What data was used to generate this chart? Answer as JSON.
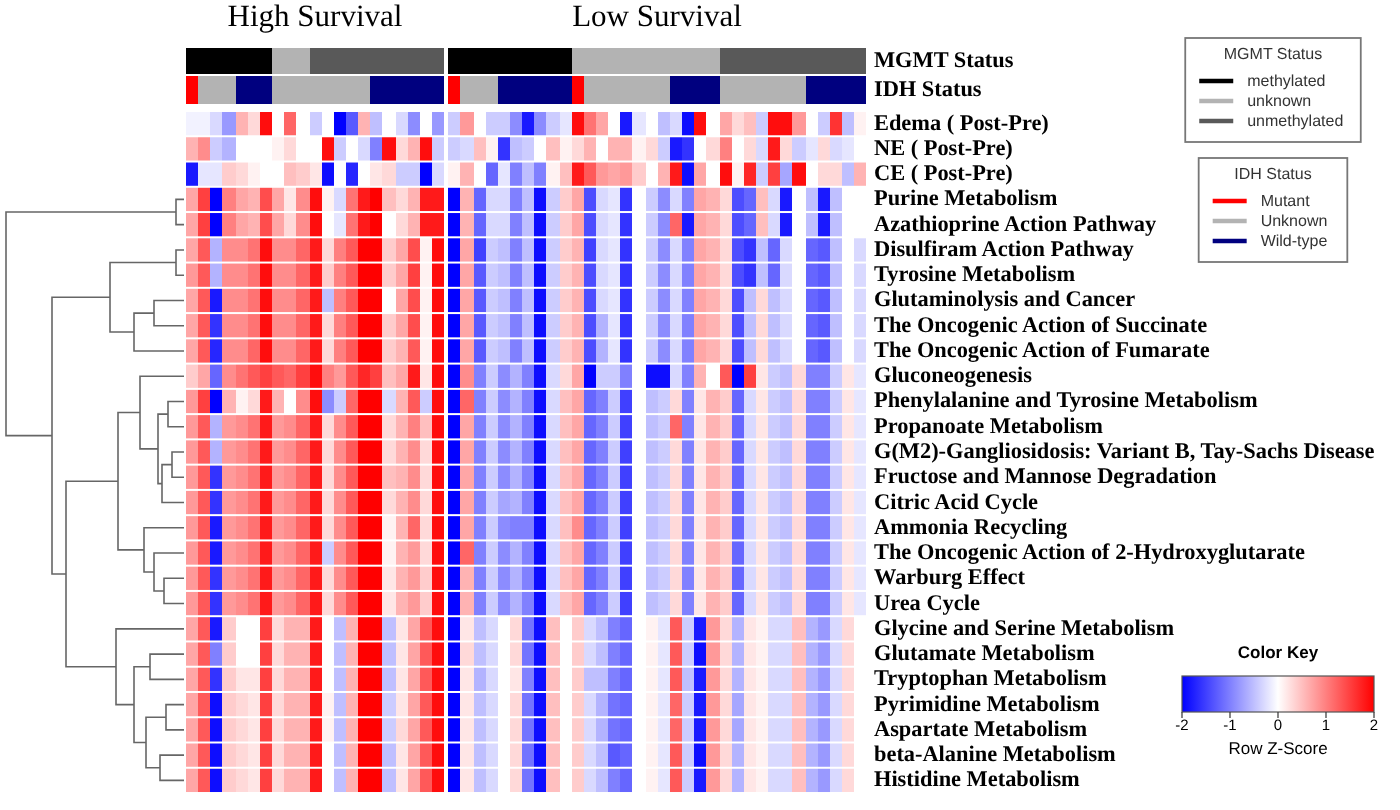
{
  "chart_data": [
    {
      "type": "other",
      "ylabel": "MGMT Status",
      "legend": "right",
      "legend_title": "MGMT Status",
      "annotations": [
        "High Survival",
        "Low Survival"
      ],
      "series": [
        {
          "name": "methylated",
          "color": "#000000"
        },
        {
          "name": "unknown",
          "color": "#b3b3b3"
        },
        {
          "name": "unmethylated",
          "color": "#595959"
        }
      ],
      "colors": [
        "#000000",
        "#000000",
        "#000000",
        "#000000",
        "#000000",
        "#000000",
        "#000000",
        "#b3b3b3",
        "#b3b3b3",
        "#b3b3b3",
        "#595959",
        "#595959",
        "#595959",
        "#595959",
        "#595959",
        "#595959",
        "#595959",
        "#595959",
        "#595959",
        "#595959",
        "#595959",
        null,
        "#000000",
        "#000000",
        "#000000",
        "#000000",
        "#000000",
        "#000000",
        "#000000",
        "#000000",
        "#000000",
        "#000000",
        "#b3b3b3",
        "#b3b3b3",
        "#b3b3b3",
        "#b3b3b3",
        "#b3b3b3",
        "#b3b3b3",
        "#b3b3b3",
        "#b3b3b3",
        "#b3b3b3",
        "#b3b3b3",
        "#b3b3b3",
        "#b3b3b3",
        "#595959",
        "#595959",
        "#595959",
        "#595959",
        "#595959",
        "#595959",
        "#595959",
        "#595959",
        "#595959",
        "#595959",
        "#595959",
        "#595959"
      ]
    },
    {
      "type": "other",
      "ylabel": "IDH Status",
      "legend": "right",
      "legend_title": "IDH Status",
      "series": [
        {
          "name": "Mutant",
          "color": "#ff0000"
        },
        {
          "name": "Unknown",
          "color": "#b3b3b3"
        },
        {
          "name": "Wild-type",
          "color": "#00007f"
        }
      ],
      "colors": [
        "#ff0000",
        "#b3b3b3",
        "#b3b3b3",
        "#b3b3b3",
        "#00007f",
        "#00007f",
        "#00007f",
        "#b3b3b3",
        "#b3b3b3",
        "#b3b3b3",
        "#b3b3b3",
        "#b3b3b3",
        "#b3b3b3",
        "#b3b3b3",
        "#b3b3b3",
        "#00007f",
        "#00007f",
        "#00007f",
        "#00007f",
        "#00007f",
        "#00007f",
        null,
        "#ff0000",
        "#b3b3b3",
        "#b3b3b3",
        "#b3b3b3",
        "#00007f",
        "#00007f",
        "#00007f",
        "#00007f",
        "#00007f",
        "#00007f",
        "#ff0000",
        "#b3b3b3",
        "#b3b3b3",
        "#b3b3b3",
        "#b3b3b3",
        "#b3b3b3",
        "#b3b3b3",
        "#b3b3b3",
        "#00007f",
        "#00007f",
        "#00007f",
        "#00007f",
        "#b3b3b3",
        "#b3b3b3",
        "#b3b3b3",
        "#b3b3b3",
        "#b3b3b3",
        "#b3b3b3",
        "#b3b3b3",
        "#00007f",
        "#00007f",
        "#00007f",
        "#00007f",
        "#00007f"
      ]
    },
    {
      "type": "heatmap",
      "categories": [
        null,
        null,
        null,
        null,
        null,
        null,
        null,
        null,
        null,
        null,
        null,
        null,
        null,
        null,
        null,
        null,
        null,
        null,
        null,
        null,
        null,
        null,
        null,
        null,
        null,
        null,
        null,
        null,
        null,
        null,
        null,
        null,
        null,
        null,
        null,
        null,
        null,
        null,
        null,
        null,
        null,
        null,
        null,
        null,
        null,
        null,
        null,
        null,
        null,
        null,
        null,
        null,
        null,
        null,
        null,
        null
      ],
      "y_categories": [
        "Edema ( Post-Pre)",
        "NE ( Post-Pre)",
        "CE ( Post-Pre)",
        "Purine Metabolism",
        "Azathioprine Action Pathway",
        "Disulfiram Action Pathway",
        "Tyrosine Metabolism",
        "Glutaminolysis and Cancer",
        "The Oncogenic Action of Succinate",
        "The Oncogenic Action of Fumarate",
        "Gluconeogenesis",
        "Phenylalanine and Tyrosine Metabolism",
        "Propanoate Metabolism",
        "G(M2)-Gangliosidosis: Variant B, Tay-Sachs Disease",
        "Fructose and Mannose Degradation",
        "Citric Acid Cycle",
        "Ammonia Recycling",
        "The Oncogenic Action of 2-Hydroxyglutarate",
        "Warburg Effect",
        "Urea Cycle",
        "Glycine and Serine Metabolism",
        "Glutamate Metabolism",
        "Tryptophan Metabolism",
        "Pyrimidine Metabolism",
        "Aspartate Metabolism",
        "beta-Alanine Metabolism",
        "Histidine Metabolism"
      ],
      "clim": [
        -2,
        2
      ],
      "cticks": [
        -2,
        -1,
        0,
        1,
        2
      ],
      "clabel": "Row Z-Score",
      "annotations": [
        "Color Key"
      ],
      "cells": [
        [
          -0.1,
          -0.1,
          -0.3,
          -0.8,
          0.6,
          0.3,
          1.9,
          0,
          1.2,
          0,
          -0.4,
          0,
          -2,
          -1.3,
          0.6,
          -0.5,
          0,
          -0.3,
          -0.9,
          0,
          -0.8,
          null,
          -0.4,
          0.8,
          0,
          -0.4,
          -0.4,
          -0.9,
          -1.8,
          -0.9,
          -0.4,
          -0.2,
          1.9,
          1.1,
          0.7,
          0,
          -1.8,
          -0.2,
          0,
          -0.5,
          -0.3,
          -1.9,
          1.9,
          0,
          0.7,
          0.3,
          0.5,
          -0.4,
          1.9,
          1.9,
          0.8,
          0,
          -0.4,
          1.6,
          -0.5,
          0.1
        ],
        [
          0.6,
          0.9,
          -0.4,
          -0.6,
          0,
          0,
          0,
          0.1,
          0.3,
          0,
          0,
          1.9,
          -0.4,
          0,
          -0.3,
          -1.0,
          1.9,
          0.3,
          0.6,
          1.9,
          -0.4,
          null,
          -0.4,
          -0.3,
          0.5,
          0.1,
          -1.6,
          -0.5,
          -0.4,
          0,
          0.5,
          0.1,
          0.3,
          0.6,
          0,
          0.6,
          0.6,
          0.1,
          0.3,
          -0.4,
          -1.8,
          -1.6,
          0,
          0.3,
          1.0,
          0,
          0.3,
          -0.3,
          1.8,
          0.3,
          -0.4,
          -0.2,
          0.3,
          -0.3,
          -0.2,
          0
        ],
        [
          -1.8,
          -0.2,
          -0.2,
          0.4,
          0.3,
          0.1,
          0,
          0,
          0.5,
          0.4,
          0.2,
          -1.9,
          0,
          -1.7,
          0,
          0.2,
          0.3,
          -0.4,
          -0.4,
          -2,
          -0.3,
          null,
          0.1,
          0.6,
          0,
          -1.2,
          -0.2,
          -1.0,
          -0.5,
          -1.0,
          0.1,
          0.5,
          1.8,
          1.3,
          0.8,
          0.7,
          0.8,
          0.4,
          0,
          0.6,
          1.8,
          -1.9,
          0.7,
          0,
          1.9,
          0.1,
          1.7,
          -0.4,
          1.5,
          -0.7,
          1.9,
          0,
          0.3,
          0.3,
          -0.5,
          0.6
        ],
        [
          0.7,
          1.5,
          -2,
          1.0,
          0.7,
          0.6,
          1.4,
          0.7,
          0.2,
          0.9,
          1.9,
          0.1,
          -0.3,
          1.1,
          1.8,
          2,
          0.5,
          0.3,
          0.6,
          1.8,
          1.8,
          null,
          -2,
          0.6,
          -1.2,
          -0.3,
          -0.3,
          -1.0,
          -0.5,
          -1.9,
          -0.4,
          0.4,
          0.7,
          -1.4,
          -0.3,
          -0.2,
          -1.6,
          0,
          -0.4,
          -0.9,
          -0.3,
          -1.0,
          0.7,
          0.6,
          0.3,
          -1.4,
          -1.2,
          0.5,
          -0.3,
          -1.8,
          0,
          -0.5,
          -1.8,
          -0.5,
          0,
          0
        ],
        [
          0.7,
          1.5,
          -2,
          1.0,
          0.7,
          0.6,
          1.4,
          0.7,
          0.3,
          0.9,
          1.9,
          0,
          -0.2,
          1.1,
          1.8,
          2,
          0,
          0.3,
          0.6,
          1.8,
          1.8,
          null,
          -2,
          0.6,
          -1.2,
          -0.3,
          -0.3,
          -1.0,
          -0.5,
          -1.9,
          -0.4,
          0.4,
          0.7,
          -1.4,
          -0.3,
          -0.2,
          -1.6,
          0,
          -0.4,
          -0.9,
          1.2,
          -1.8,
          0.7,
          0.6,
          0.3,
          -1.4,
          -1.2,
          0.5,
          -0.3,
          -1.8,
          0,
          -0.5,
          -1.8,
          -0.5,
          0,
          0
        ],
        [
          0.7,
          1.3,
          -0.6,
          0.9,
          0.9,
          1.1,
          1.9,
          0.9,
          0.9,
          1.2,
          1.8,
          0.3,
          1.0,
          1.3,
          2,
          2,
          0.4,
          0.7,
          1.4,
          0.1,
          1.9,
          null,
          -2,
          0.7,
          -1.5,
          -0.4,
          -0.5,
          -1.0,
          -0.5,
          -1.9,
          -0.4,
          0.4,
          0.6,
          -1.5,
          -0.3,
          -0.2,
          -1.6,
          0,
          -0.4,
          -0.9,
          -0.3,
          -1.0,
          0.7,
          0.6,
          0.3,
          -1.4,
          -1.6,
          -0.5,
          -1.2,
          -0.3,
          0,
          -1.2,
          -1.3,
          -0.5,
          0,
          -0.3
        ],
        [
          0.8,
          1.3,
          -0.6,
          0.9,
          0.9,
          1.1,
          1.9,
          0.9,
          0.9,
          1.2,
          1.8,
          0.4,
          1.0,
          1.3,
          2,
          2,
          0.4,
          0.7,
          1.5,
          0.1,
          1.9,
          null,
          -2,
          0.7,
          -1.3,
          -0.4,
          -0.5,
          -1.0,
          -0.5,
          -1.9,
          -0.4,
          0.4,
          0.6,
          -1.4,
          -0.3,
          -0.2,
          -1.6,
          0,
          -0.4,
          -0.9,
          -0.3,
          -1.0,
          0.7,
          0.6,
          0.3,
          -1.4,
          -1.6,
          -0.5,
          -1.2,
          -0.3,
          0,
          -1.2,
          -1.3,
          -0.5,
          0,
          -0.3
        ],
        [
          0.7,
          1.3,
          -1.8,
          0.9,
          0.9,
          1.1,
          1.9,
          0.9,
          0.9,
          1.2,
          1.8,
          -0.5,
          1.0,
          1.3,
          2,
          2,
          0,
          0.7,
          1.4,
          0.1,
          1.9,
          null,
          -2,
          0.7,
          -1.3,
          -0.4,
          -0.5,
          -1.0,
          -0.5,
          -1.9,
          -0.4,
          0.4,
          0.6,
          -1.4,
          -0.3,
          -0.2,
          -1.6,
          0,
          -0.4,
          -0.9,
          -0.3,
          -1.0,
          0.7,
          0.6,
          0.3,
          -1.4,
          -0.5,
          0.3,
          -0.5,
          -0.3,
          0,
          -1.2,
          -1.3,
          -0.5,
          0,
          -0.3
        ],
        [
          0.7,
          1.3,
          -1.6,
          0.9,
          0.9,
          1.1,
          1.9,
          0.9,
          0.9,
          1.2,
          1.8,
          0.3,
          1.0,
          1.3,
          2,
          2,
          0.4,
          0.7,
          1.4,
          0.1,
          1.9,
          null,
          -2,
          0.7,
          -1.3,
          -0.4,
          -0.5,
          -1.0,
          -0.5,
          -1.9,
          -0.4,
          0.4,
          0.6,
          -1.4,
          -0.6,
          -0.2,
          -1.6,
          0,
          -0.4,
          -0.9,
          -0.3,
          -1.0,
          0.7,
          0.6,
          0.3,
          -1.4,
          -0.5,
          0.3,
          -0.5,
          -0.3,
          0,
          -1.2,
          -1.3,
          -0.5,
          0,
          -0.3
        ],
        [
          0.7,
          1.3,
          -1.7,
          0.9,
          0.9,
          1.2,
          1.9,
          0.9,
          0.9,
          1.2,
          1.8,
          0.3,
          1.0,
          1.3,
          2,
          2,
          0.4,
          0.6,
          1.3,
          0.1,
          1.9,
          null,
          -2,
          0.7,
          -1.3,
          -0.4,
          -0.5,
          -1.0,
          -0.5,
          -1.9,
          -0.4,
          0.4,
          0.6,
          -1.4,
          -0.6,
          -0.2,
          -1.6,
          0,
          -0.4,
          -0.9,
          -0.3,
          -1.0,
          0.7,
          0.6,
          0.3,
          -1.4,
          -0.5,
          0.3,
          -0.5,
          -0.3,
          0,
          -1.2,
          -1.3,
          -0.5,
          0,
          -0.3
        ],
        [
          0.4,
          0.7,
          -1.2,
          0.9,
          1.1,
          1.3,
          1.5,
          1.3,
          1.2,
          1.5,
          1.9,
          1.0,
          0.8,
          1.3,
          1.7,
          1.5,
          0.5,
          0.7,
          1.8,
          0.2,
          1.9,
          null,
          -2,
          0.9,
          -1.0,
          -0.4,
          -0.9,
          -0.6,
          -1.0,
          -1.9,
          -0.3,
          0.3,
          0.7,
          -2,
          -0.4,
          -0.4,
          -1.0,
          0,
          -1.9,
          -1.9,
          -0.3,
          -1.0,
          0.6,
          0,
          1.3,
          -2,
          1.5,
          0.2,
          -0.4,
          -0.5,
          0.3,
          -1.0,
          -1.0,
          -0.4,
          0.2,
          -0.2
        ],
        [
          0.8,
          1.5,
          -2,
          0.6,
          0.1,
          0.3,
          1.8,
          0.6,
          0,
          0.9,
          1.9,
          -0.9,
          -0.4,
          1.2,
          2,
          2,
          -0.3,
          0.6,
          1.3,
          -0.4,
          1.9,
          null,
          -2,
          1.2,
          -1.0,
          -0.4,
          -0.9,
          -0.6,
          -1.0,
          -1.9,
          -0.3,
          0.5,
          0.7,
          -1.2,
          -1.0,
          -0.4,
          -1.5,
          0,
          -0.5,
          -0.4,
          0.3,
          -1.0,
          0.2,
          0.6,
          0.4,
          -1.2,
          -0.3,
          0.2,
          -0.4,
          -0.5,
          0.3,
          -1.0,
          -1.0,
          -0.4,
          0.2,
          -0.2
        ],
        [
          0.8,
          1.3,
          -0.6,
          0.8,
          0.9,
          1.1,
          1.8,
          0.8,
          0.9,
          1.2,
          1.8,
          0.3,
          0.9,
          1.3,
          2,
          2,
          0.3,
          0.6,
          1.0,
          0.5,
          1.9,
          null,
          -2,
          0.7,
          -1.0,
          -0.4,
          -0.9,
          -0.6,
          -1.0,
          -1.9,
          -0.3,
          0.5,
          0.7,
          -1.2,
          -1.0,
          -0.4,
          -1.5,
          0,
          -0.5,
          -0.4,
          1.2,
          -1.0,
          0.2,
          0.6,
          0.4,
          -1.2,
          -0.3,
          0.2,
          -0.4,
          -0.5,
          0.3,
          -1.0,
          -1.0,
          -0.4,
          0.2,
          -0.2
        ],
        [
          0.8,
          1.3,
          -0.6,
          0.8,
          0.9,
          1.1,
          1.8,
          0.8,
          0.9,
          1.2,
          1.8,
          0.3,
          0.9,
          1.3,
          2,
          2,
          0.3,
          0.6,
          0.9,
          0.3,
          1.9,
          null,
          -2,
          0.7,
          -1.0,
          -0.4,
          -0.9,
          -0.6,
          -1.0,
          -1.9,
          -0.3,
          0.5,
          0.7,
          -1.2,
          -1.0,
          -0.4,
          -1.5,
          0,
          -0.5,
          -0.4,
          0.3,
          -1.0,
          0.2,
          0.6,
          0.4,
          -1.2,
          -0.3,
          0.2,
          -0.4,
          -0.5,
          0.3,
          -1.0,
          -1.0,
          -0.4,
          0.2,
          -0.2
        ],
        [
          0.8,
          1.3,
          -1.6,
          0.8,
          0.9,
          1.1,
          1.8,
          0.8,
          0.9,
          1.2,
          1.8,
          0.3,
          0.9,
          1.3,
          2,
          2,
          0.5,
          0.6,
          0.9,
          0.3,
          1.9,
          null,
          -2,
          0.7,
          -1.0,
          -0.4,
          -0.9,
          -0.6,
          -1.0,
          -1.9,
          -0.3,
          0.5,
          0.7,
          -1.2,
          -1.0,
          -0.4,
          -1.5,
          0,
          -0.5,
          -0.4,
          0.3,
          -1.0,
          0.2,
          0.6,
          0.4,
          -1.2,
          -0.3,
          0.2,
          -0.4,
          -0.5,
          0.3,
          -1.0,
          -1.0,
          -0.4,
          0.2,
          -0.2
        ],
        [
          0.8,
          1.3,
          -1.6,
          0.8,
          0.9,
          1.1,
          1.8,
          0.8,
          0.9,
          1.2,
          1.8,
          0.3,
          0.9,
          1.3,
          2,
          2,
          0.3,
          0.6,
          0.9,
          0.3,
          1.9,
          null,
          -2,
          0.7,
          -1.0,
          -0.4,
          -0.7,
          -0.6,
          -1.0,
          -1.9,
          -0.3,
          0.5,
          0.7,
          -1.2,
          -1.0,
          -0.4,
          -1.5,
          0,
          -0.5,
          -0.4,
          0.3,
          -1.0,
          0.2,
          0.6,
          0.4,
          -1.2,
          -0.3,
          0.2,
          -0.4,
          -0.5,
          0.3,
          -1.0,
          -1.0,
          -0.4,
          0.2,
          -0.2
        ],
        [
          0.8,
          1.3,
          -1.8,
          0.8,
          0.9,
          1.1,
          1.8,
          0.8,
          0.9,
          1.2,
          1.8,
          0.3,
          0.9,
          1.3,
          2,
          2,
          0.1,
          0.6,
          1.2,
          0.3,
          1.9,
          null,
          -2,
          0.7,
          -1.0,
          -0.4,
          -0.9,
          -1.0,
          -1.0,
          -1.9,
          -0.3,
          0.5,
          0.9,
          -1.2,
          -1.0,
          -0.4,
          -1.5,
          0,
          -0.5,
          -0.4,
          0.3,
          -1.0,
          0.2,
          0.6,
          0.4,
          -1.2,
          -0.3,
          0.2,
          -0.4,
          -0.5,
          0.3,
          -1.0,
          -1.0,
          -0.4,
          0.2,
          -0.2
        ],
        [
          0.8,
          1.3,
          -1.8,
          0.8,
          0.9,
          1.1,
          1.8,
          0.8,
          0.9,
          1.2,
          1.8,
          -0.4,
          0.9,
          1.3,
          2,
          2,
          0.1,
          0.6,
          0.8,
          0.3,
          1.9,
          null,
          -2,
          1.2,
          -1.0,
          -0.4,
          -0.9,
          -0.6,
          -1.0,
          -1.9,
          -0.3,
          0.5,
          0.7,
          -1.2,
          -1.0,
          -0.4,
          -1.5,
          0,
          -0.5,
          -0.4,
          0.3,
          -1.0,
          0.2,
          0.6,
          0.4,
          -1.2,
          -0.3,
          0.2,
          -0.4,
          -0.5,
          0.3,
          -1.0,
          -1.0,
          -0.4,
          0.2,
          -0.2
        ],
        [
          0.8,
          1.3,
          -1.6,
          0.8,
          0.9,
          1.1,
          1.8,
          0.8,
          0.9,
          1.2,
          1.8,
          0.3,
          0.9,
          1.3,
          2,
          2,
          0.2,
          0.6,
          0.8,
          0.4,
          1.9,
          null,
          -2,
          0.6,
          -1.0,
          -0.4,
          -0.9,
          -0.6,
          -1.0,
          -1.9,
          -0.3,
          0.5,
          0.7,
          -1.2,
          -1.0,
          -0.4,
          -1.5,
          0,
          -0.5,
          -0.4,
          0.3,
          -1.0,
          0.2,
          0.6,
          0.4,
          -1.2,
          -0.3,
          0.2,
          -0.4,
          -0.5,
          0.3,
          -1.0,
          -1.0,
          -0.4,
          0.2,
          -0.2
        ],
        [
          0.8,
          1.3,
          -1.6,
          0.8,
          0.9,
          1.1,
          1.8,
          0.8,
          0.9,
          1.2,
          1.8,
          0.3,
          0.9,
          1.3,
          2,
          2,
          0.2,
          0.6,
          0.8,
          0.4,
          1.9,
          null,
          -2,
          0.6,
          -1.0,
          -0.4,
          -0.9,
          -0.6,
          -1.0,
          -1.9,
          -0.3,
          0.5,
          0.7,
          -1.2,
          -1.0,
          -0.4,
          -1.5,
          0,
          -0.5,
          -0.4,
          0.3,
          -1.0,
          0.2,
          0.6,
          0.4,
          -1.2,
          -0.3,
          0.2,
          -0.4,
          -0.5,
          0.3,
          -1.0,
          -1.0,
          -0.4,
          0.2,
          -0.2
        ],
        [
          0.7,
          1.3,
          -1.8,
          0.4,
          0,
          0,
          1.5,
          0.3,
          0.6,
          0.6,
          1.8,
          0,
          -0.5,
          0.6,
          2,
          2,
          -0.5,
          0.2,
          0.7,
          1.3,
          1.9,
          null,
          -2,
          0.2,
          -0.5,
          -0.3,
          0,
          0.3,
          -1.1,
          -1.9,
          0.5,
          0,
          0.4,
          -0.3,
          -0.5,
          -1.0,
          -1.2,
          0,
          0.1,
          -0.2,
          1.3,
          -0.4,
          -1.8,
          0.8,
          0.3,
          -0.6,
          0.2,
          0.1,
          -0.3,
          -0.3,
          0.5,
          -0.6,
          -0.8,
          -0.3,
          0.3,
          0
        ],
        [
          0.7,
          1.3,
          -1.0,
          0.4,
          0,
          0,
          1.5,
          0.3,
          0.6,
          0.6,
          1.8,
          0,
          -0.5,
          0.6,
          2,
          2,
          -0.5,
          0.2,
          0.7,
          1.3,
          1.9,
          null,
          -2,
          0.3,
          -0.5,
          -0.3,
          0,
          0.3,
          -1.1,
          -1.9,
          0.5,
          0,
          0.4,
          -0.3,
          -0.5,
          -1.0,
          -1.2,
          0,
          0.1,
          -0.2,
          1.3,
          -0.4,
          -1.9,
          0.8,
          0.3,
          -0.6,
          0.2,
          0.1,
          -0.3,
          -0.3,
          0.5,
          -0.6,
          -0.8,
          -0.3,
          0.3,
          0
        ],
        [
          0.7,
          1.3,
          -1.6,
          0.4,
          0.2,
          0.2,
          1.5,
          0.3,
          0.6,
          0.6,
          1.8,
          0,
          -0.5,
          0.6,
          2,
          2,
          -0.5,
          0.2,
          0.7,
          1.3,
          1.9,
          null,
          -2,
          0.2,
          -0.6,
          -0.3,
          0,
          0.2,
          -1.0,
          -1.9,
          0.5,
          0,
          0.4,
          -0.5,
          -0.5,
          -1.0,
          -1.2,
          0,
          0.1,
          -0.2,
          1.3,
          -0.5,
          -1.8,
          0.8,
          0.3,
          -0.6,
          0.2,
          0.1,
          -0.3,
          -0.3,
          0.5,
          -0.6,
          -0.8,
          -0.3,
          0.3,
          0
        ],
        [
          0.7,
          1.3,
          -1.9,
          0.4,
          0.3,
          0.2,
          1.5,
          0.3,
          0.6,
          0.6,
          1.8,
          0.1,
          -0.5,
          0.6,
          2,
          2,
          -0.4,
          0.2,
          0.7,
          1.3,
          1.9,
          null,
          -2,
          0.2,
          -0.5,
          -0.3,
          0,
          0.3,
          -1.1,
          -1.9,
          0.5,
          0,
          0.4,
          -0.3,
          -0.6,
          -1.1,
          -1.2,
          0,
          0.1,
          -0.2,
          1.2,
          -0.4,
          -1.8,
          0.8,
          0.3,
          -0.7,
          0.2,
          0.1,
          -0.3,
          -0.3,
          0.5,
          -0.6,
          -0.8,
          -0.3,
          0.3,
          0
        ],
        [
          0.7,
          1.3,
          -1.9,
          0.4,
          0.3,
          0.2,
          1.5,
          0.3,
          0.6,
          0.6,
          1.8,
          0.1,
          -0.5,
          0.6,
          2,
          2,
          -0.4,
          0.3,
          0.7,
          1.3,
          1.9,
          null,
          -2,
          0.2,
          -0.5,
          -0.3,
          0,
          0.3,
          -1.1,
          -1.9,
          0.5,
          0,
          0.4,
          -0.3,
          -0.6,
          -1.1,
          -1.2,
          0,
          0.1,
          -0.2,
          1.2,
          -0.4,
          -1.8,
          0.8,
          0.3,
          -0.7,
          0.2,
          0.1,
          -0.3,
          -0.3,
          0.5,
          -0.6,
          -0.8,
          -0.3,
          0.3,
          0
        ],
        [
          0.7,
          1.3,
          -1.9,
          0.4,
          0.3,
          0.2,
          1.5,
          0.3,
          0.6,
          0.6,
          1.8,
          0,
          -0.5,
          0.6,
          2,
          2,
          -0.5,
          0.2,
          0.7,
          1.3,
          1.9,
          null,
          -2,
          0.2,
          -0.5,
          -0.3,
          0,
          0.3,
          -1.1,
          -1.9,
          0.5,
          0,
          0.4,
          -0.3,
          -0.5,
          -1.3,
          -1.2,
          0,
          0.1,
          -0.2,
          1.3,
          -0.4,
          -1.9,
          0.8,
          0.3,
          -0.6,
          0.2,
          0.1,
          -0.3,
          -0.3,
          0.5,
          -0.6,
          -0.8,
          -0.3,
          0.3,
          0
        ],
        [
          0.7,
          1.3,
          -1.9,
          0.4,
          0.3,
          0.2,
          1.5,
          0.3,
          0.6,
          0.6,
          1.8,
          0,
          -0.5,
          0.6,
          2,
          2,
          -0.5,
          0.2,
          0.7,
          1.3,
          1.9,
          null,
          -2,
          0.2,
          -0.5,
          -0.3,
          0,
          0.3,
          -1.1,
          -1.9,
          0.5,
          0,
          0.4,
          -0.3,
          -0.5,
          -1.0,
          -1.2,
          0,
          0.1,
          -0.2,
          1.3,
          -0.4,
          -1.8,
          0.8,
          0.3,
          -0.6,
          0.2,
          0.1,
          -0.3,
          -0.3,
          0.5,
          -0.6,
          -0.8,
          -0.3,
          0.3,
          0
        ]
      ]
    }
  ]
}
